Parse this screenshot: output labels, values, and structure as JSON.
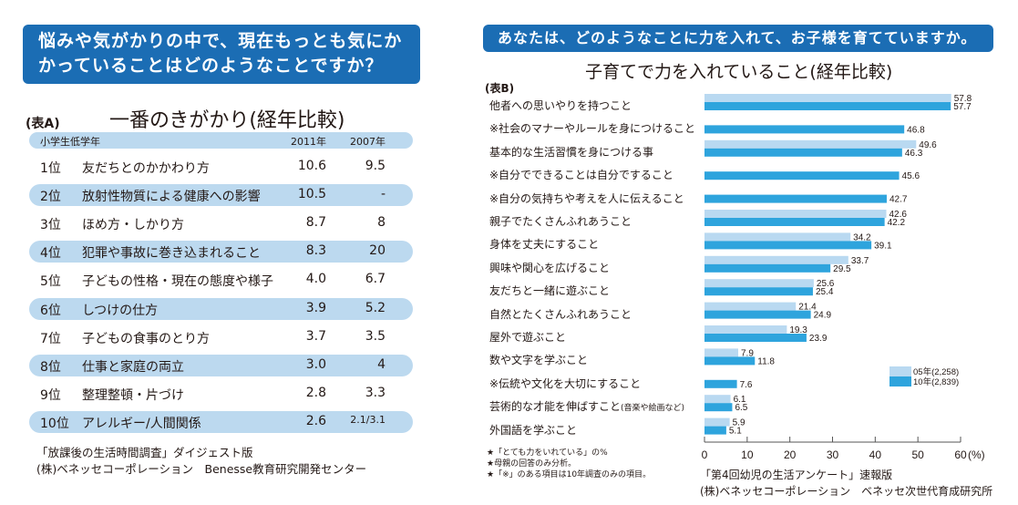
{
  "left": {
    "question": [
      "悩みや気がかりの中で、現在もっとも気にか",
      "かっていることはどのようなことですか？"
    ],
    "table_label": "(表A)",
    "title": "一番のきがかり(経年比較)",
    "header": {
      "group": "小学生低学年",
      "col1": "2011年",
      "col2": "2007年"
    },
    "rows": [
      {
        "rank": "1位",
        "item": "友だちとのかかわり方",
        "v2011": "10.6",
        "v2007": "9.5"
      },
      {
        "rank": "2位",
        "item": "放射性物質による健康への影響",
        "v2011": "10.5",
        "v2007": "-"
      },
      {
        "rank": "3位",
        "item": "ほめ方・しかり方",
        "v2011": "8.7",
        "v2007": "8"
      },
      {
        "rank": "4位",
        "item": "犯罪や事故に巻き込まれること",
        "v2011": "8.3",
        "v2007": "20"
      },
      {
        "rank": "5位",
        "item": "子どもの性格・現在の態度や様子",
        "v2011": "4.0",
        "v2007": "6.7"
      },
      {
        "rank": "6位",
        "item": "しつけの仕方",
        "v2011": "3.9",
        "v2007": "5.2"
      },
      {
        "rank": "7位",
        "item": "子どもの食事のとり方",
        "v2011": "3.7",
        "v2007": "3.5"
      },
      {
        "rank": "8位",
        "item": "仕事と家庭の両立",
        "v2011": "3.0",
        "v2007": "4"
      },
      {
        "rank": "9位",
        "item": "整理整頓・片づけ",
        "v2011": "2.8",
        "v2007": "3.3"
      },
      {
        "rank": "10位",
        "item": "アレルギー/人間関係",
        "v2011": "2.6",
        "v2007": "2.1/3.1"
      }
    ],
    "source": [
      "「放課後の生活時間調査」ダイジェスト版",
      "(株)ベネッセコーポレーション　Benesse教育研究開発センター"
    ]
  },
  "right": {
    "question": "あなたは、どのようなことに力を入れて、お子様を育てていますか。",
    "table_label": "(表B)",
    "notes": [
      "★「とても力をいれている」の%",
      "★母親の回答のみ分析。",
      "★「※」のある項目は10年調査のみの項目。"
    ],
    "source": [
      "「第4回幼児の生活アンケート」速報版",
      "(株)ベネッセコーポレーション　ベネッセ次世代育成研究所"
    ]
  },
  "colors": {
    "header_blue": "#1b6db4",
    "band": "#bcd9ef",
    "series_2005": "#b9d9f1",
    "series_2010": "#2ea4dd"
  },
  "chart_data": {
    "type": "bar",
    "orientation": "horizontal",
    "title": "子育てで力を入れていること(経年比較)",
    "xlabel": "(%)",
    "xlim": [
      0,
      60
    ],
    "xticks": [
      0,
      10,
      20,
      30,
      40,
      50,
      60
    ],
    "legend_position": "right",
    "categories": [
      "他者への思いやりを持つこと",
      "※社会のマナーやルールを身につけること",
      "基本的な生活習慣を身につける事",
      "※自分でできることは自分ですること",
      "※自分の気持ちや考えを人に伝えること",
      "親子でたくさんふれあうこと",
      "身体を丈夫にすること",
      "興味や関心を広げること",
      "友だちと一緒に遊ぶこと",
      "自然とたくさんふれあうこと",
      "屋外で遊ぶこと",
      "数や文字を学ぶこと",
      "※伝統や文化を大切にすること",
      "芸術的な才能を伸ばすこと",
      "外国語を学ぶこと"
    ],
    "category_suffix": {
      "13": "(音楽や絵画など)"
    },
    "series": [
      {
        "name": "05年(2,258)",
        "values": [
          57.8,
          null,
          49.6,
          null,
          null,
          42.6,
          34.2,
          33.7,
          25.6,
          21.4,
          19.3,
          7.9,
          null,
          6.1,
          5.9
        ]
      },
      {
        "name": "10年(2,839)",
        "values": [
          57.7,
          46.8,
          46.3,
          45.6,
          42.7,
          42.2,
          39.1,
          29.5,
          25.4,
          24.9,
          23.9,
          11.8,
          7.6,
          6.5,
          5.1
        ]
      }
    ]
  }
}
